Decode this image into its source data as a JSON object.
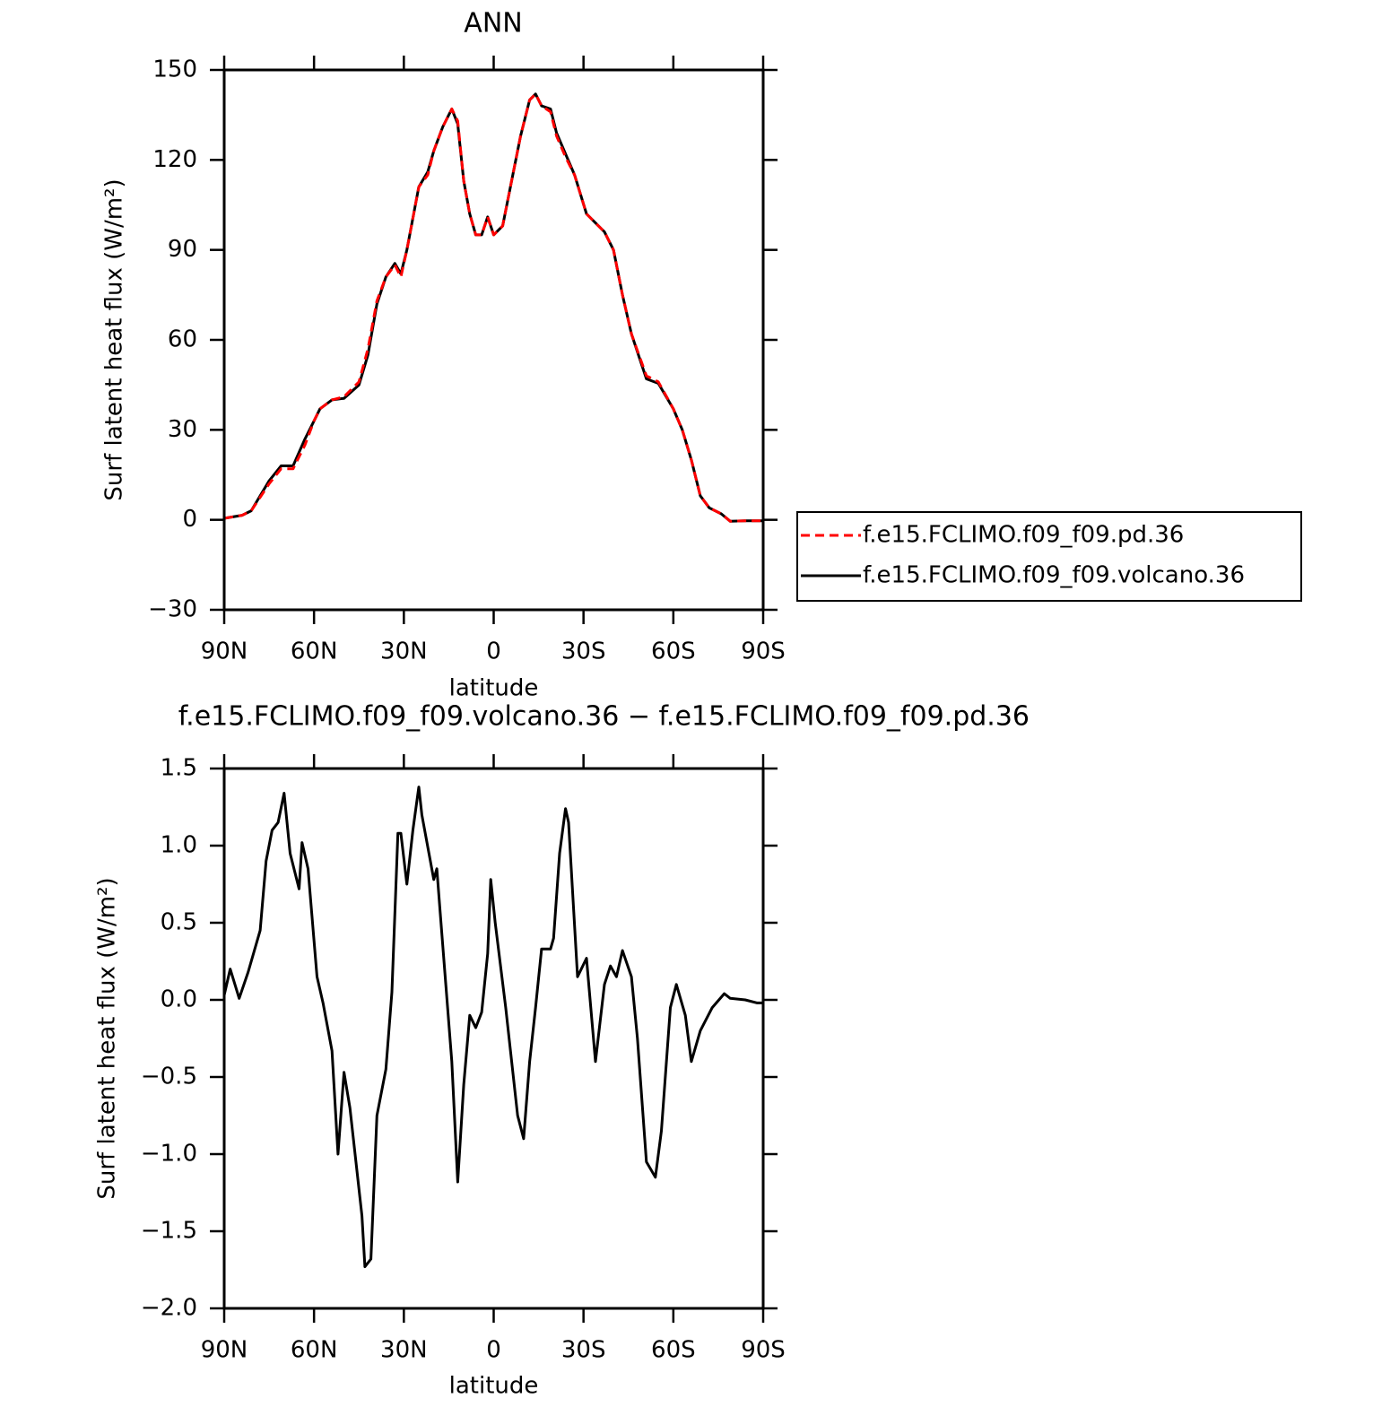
{
  "chart_data": [
    {
      "type": "line",
      "title": "ANN",
      "xlabel": "latitude",
      "ylabel": "Surf latent heat flux (W/m²)",
      "xlim": [
        90,
        -90
      ],
      "ylim": [
        -30,
        150
      ],
      "xticks": [
        {
          "value": 90,
          "label": "90N"
        },
        {
          "value": 60,
          "label": "60N"
        },
        {
          "value": 30,
          "label": "30N"
        },
        0,
        {
          "value": -30,
          "label": "30S"
        },
        {
          "value": -60,
          "label": "60S"
        },
        {
          "value": -90,
          "label": "90S"
        }
      ],
      "yticks": [
        {
          "value": -30,
          "label": "−30"
        },
        0,
        30,
        60,
        90,
        120,
        150
      ],
      "legend": "right",
      "x": [
        90,
        84,
        81,
        78,
        75,
        71,
        67,
        63,
        60,
        58,
        54,
        50,
        45,
        42,
        39,
        36,
        33,
        31,
        29,
        25,
        22,
        20,
        17,
        14,
        12,
        10,
        8,
        6,
        4,
        2,
        0,
        -3,
        -6,
        -9,
        -12,
        -14,
        -16,
        -19,
        -21,
        -24,
        -27,
        -31,
        -34,
        -37,
        -40,
        -43,
        -46,
        -51,
        -55,
        -60,
        -63,
        -66,
        -69,
        -72,
        -76,
        -79,
        -84,
        -90
      ],
      "series": [
        {
          "name": "f.e15.FCLIMO.f09_f09.pd.36",
          "color": "#ff0000",
          "linestyle": "dashed",
          "values": [
            0.5,
            1.5,
            3,
            7.5,
            12,
            17,
            17,
            25,
            33,
            37,
            40,
            41,
            46,
            57,
            73,
            81,
            85,
            81,
            90,
            111,
            115,
            123,
            131,
            137,
            133,
            113,
            102,
            95,
            95,
            101,
            95,
            98,
            113,
            128,
            140,
            142,
            138,
            136,
            128,
            121,
            115,
            102,
            99,
            96,
            90,
            75,
            62,
            48,
            46,
            37,
            30,
            20,
            8,
            4,
            2,
            -0.5,
            -0.3,
            -0.3
          ]
        },
        {
          "name": "f.e15.FCLIMO.f09_f09.volcano.36",
          "color": "#000000",
          "linestyle": "solid",
          "values": [
            0.5,
            1.5,
            3,
            8,
            13,
            18,
            18,
            27,
            33,
            37,
            40,
            40.5,
            45,
            55,
            72,
            81,
            85.5,
            82,
            90,
            111,
            116,
            123,
            131,
            137,
            132,
            113,
            102,
            95,
            95,
            101,
            95,
            98,
            113,
            128,
            140,
            142,
            138,
            137,
            129,
            122,
            115,
            102,
            99,
            96,
            90,
            75,
            62,
            47,
            45.5,
            37,
            30,
            20,
            8,
            4,
            2,
            -0.5,
            -0.3,
            -0.3
          ]
        }
      ]
    },
    {
      "type": "line",
      "title": "f.e15.FCLIMO.f09_f09.volcano.36 − f.e15.FCLIMO.f09_f09.pd.36",
      "xlabel": "latitude",
      "ylabel": "Surf latent heat flux (W/m²)",
      "xlim": [
        90,
        -90
      ],
      "ylim": [
        -2.0,
        1.5
      ],
      "xticks": [
        {
          "value": 90,
          "label": "90N"
        },
        {
          "value": 60,
          "label": "60N"
        },
        {
          "value": 30,
          "label": "30N"
        },
        0,
        {
          "value": -30,
          "label": "30S"
        },
        {
          "value": -60,
          "label": "60S"
        },
        {
          "value": -90,
          "label": "90S"
        }
      ],
      "yticks": [
        {
          "value": -2.0,
          "label": "−2.0"
        },
        {
          "value": -1.5,
          "label": "−1.5"
        },
        {
          "value": -1.0,
          "label": "−1.0"
        },
        {
          "value": -0.5,
          "label": "−0.5"
        },
        {
          "value": 0,
          "label": "0.0"
        },
        {
          "value": 0.5,
          "label": "0.5"
        },
        {
          "value": 1.0,
          "label": "1.0"
        },
        {
          "value": 1.5,
          "label": "1.5"
        }
      ],
      "x": [
        90,
        88,
        85,
        82,
        78,
        76,
        74,
        72,
        70,
        68,
        65,
        64,
        62,
        59,
        57,
        54,
        52,
        50,
        48,
        46,
        44,
        43,
        41,
        39,
        36,
        34,
        32,
        31,
        29,
        27,
        25,
        24,
        20,
        19,
        18,
        16,
        14,
        12,
        10,
        8,
        6,
        4,
        2,
        1,
        -0.5,
        -4,
        -8,
        -10,
        -12,
        -14,
        -16,
        -19,
        -20,
        -22,
        -24,
        -25,
        -28,
        -31,
        -34,
        -37,
        -39,
        -41,
        -43,
        -46,
        -48,
        -51,
        -54,
        -56,
        -59,
        -61,
        -64,
        -66,
        -69,
        -73,
        -77,
        -79,
        -84,
        -88,
        -90
      ],
      "series": [
        {
          "color": "#000000",
          "linestyle": "solid",
          "values": [
            0.03,
            0.2,
            0.01,
            0.18,
            0.45,
            0.9,
            1.1,
            1.15,
            1.34,
            0.95,
            0.72,
            1.02,
            0.85,
            0.15,
            -0.02,
            -0.33,
            -1.0,
            -0.47,
            -0.7,
            -1.05,
            -1.4,
            -1.73,
            -1.68,
            -0.75,
            -0.45,
            0.05,
            1.08,
            1.08,
            0.75,
            1.1,
            1.38,
            1.2,
            0.78,
            0.85,
            0.6,
            0.1,
            -0.4,
            -1.18,
            -0.55,
            -0.1,
            -0.18,
            -0.08,
            0.3,
            0.78,
            0.5,
            -0.05,
            -0.75,
            -0.9,
            -0.4,
            -0.05,
            0.33,
            0.33,
            0.4,
            0.95,
            1.24,
            1.15,
            0.15,
            0.27,
            -0.4,
            0.1,
            0.22,
            0.15,
            0.32,
            0.15,
            -0.25,
            -1.05,
            -1.15,
            -0.85,
            -0.05,
            0.1,
            -0.1,
            -0.4,
            -0.2,
            -0.05,
            0.04,
            0.01,
            0.0,
            -0.02,
            -0.02
          ]
        }
      ]
    }
  ]
}
